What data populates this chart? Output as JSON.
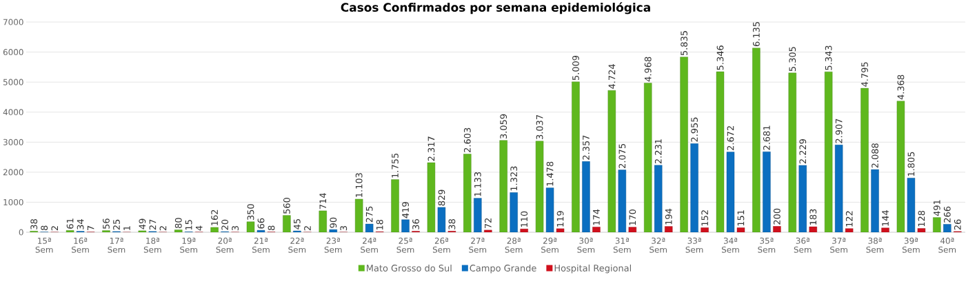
{
  "chart_data": {
    "type": "bar",
    "title": "Casos Confirmados por semana epidemiológica",
    "categories": [
      "15ª Sem",
      "16ª Sem",
      "17ª Sem",
      "18ª Sem",
      "19ª Sem",
      "20ª Sem",
      "21ª Sem",
      "22ª Sem",
      "23ª Sem",
      "24ª Sem",
      "25ª Sem",
      "26ª Sem",
      "27ª Sem",
      "28ª Sem",
      "29ª Sem",
      "30ª Sem",
      "31ª Sem",
      "32ª Sem",
      "33ª Sem",
      "34ª Sem",
      "35ª Sem",
      "36ª Sem",
      "37ª Sem",
      "38ª Sem",
      "39ª Sem",
      "40ª Sem"
    ],
    "series": [
      {
        "name": "Mato Grosso do Sul",
        "color": "#5fb81e",
        "values": [
          38,
          61,
          56,
          49,
          80,
          162,
          350,
          560,
          714,
          1103,
          1755,
          2317,
          2603,
          3059,
          3037,
          5009,
          4724,
          4968,
          5835,
          5346,
          6135,
          5305,
          5343,
          4795,
          4368,
          491
        ],
        "value_labels": [
          "38",
          "61",
          "56",
          "49",
          "80",
          "162",
          "350",
          "560",
          "714",
          "1.103",
          "1.755",
          "2.317",
          "2.603",
          "3.059",
          "3.037",
          "5.009",
          "4.724",
          "4.968",
          "5.835",
          "5.346",
          "6.135",
          "5.305",
          "5.343",
          "4.795",
          "4.368",
          "491"
        ]
      },
      {
        "name": "Campo Grande",
        "color": "#0b6fc1",
        "values": [
          8,
          34,
          25,
          27,
          15,
          20,
          66,
          45,
          90,
          275,
          419,
          829,
          1133,
          1323,
          1478,
          2357,
          2075,
          2231,
          2955,
          2672,
          2681,
          2229,
          2907,
          2088,
          1805,
          266
        ],
        "value_labels": [
          "8",
          "34",
          "25",
          "27",
          "15",
          "20",
          "66",
          "45",
          "90",
          "275",
          "419",
          "829",
          "1.133",
          "1.323",
          "1.478",
          "2.357",
          "2.075",
          "2.231",
          "2.955",
          "2.672",
          "2.681",
          "2.229",
          "2.907",
          "2.088",
          "1.805",
          "266"
        ]
      },
      {
        "name": "Hospital Regional",
        "color": "#d0101c",
        "values": [
          2,
          7,
          1,
          2,
          4,
          3,
          8,
          2,
          3,
          18,
          36,
          38,
          72,
          110,
          119,
          174,
          170,
          194,
          152,
          151,
          200,
          183,
          122,
          144,
          128,
          26
        ],
        "value_labels": [
          "2",
          "7",
          "1",
          "2",
          "4",
          "3",
          "8",
          "2",
          "3",
          "18",
          "36",
          "38",
          "72",
          "110",
          "119",
          "174",
          "170",
          "194",
          "152",
          "151",
          "200",
          "183",
          "122",
          "144",
          "128",
          "26"
        ]
      }
    ],
    "ylim": [
      0,
      7000
    ],
    "yticks": [
      0,
      1000,
      2000,
      3000,
      4000,
      5000,
      6000,
      7000
    ],
    "grid": "y",
    "legend": "bottom"
  }
}
